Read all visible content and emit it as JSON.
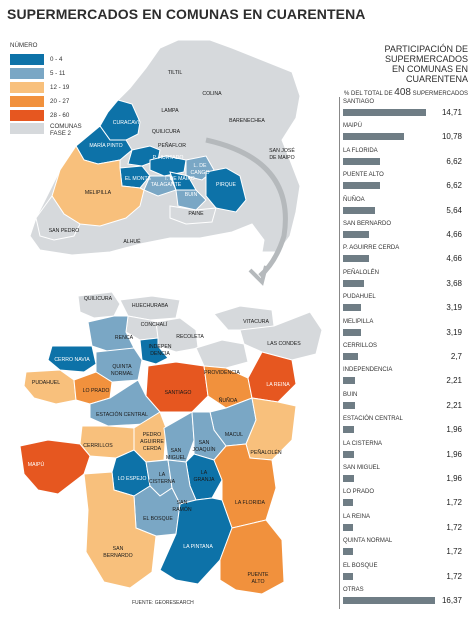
{
  "title": "SUPERMERCADOS EN COMUNAS EN CUARENTENA",
  "colors": {
    "c0_4": "#0d72a8",
    "c5_11": "#7aa7c5",
    "c12_19": "#f8c07c",
    "c20_27": "#f1913d",
    "c28_60": "#e65720",
    "gray": "#d6d9dc"
  },
  "legend": {
    "title": "NÚMERO",
    "items": [
      {
        "label": "0 - 4",
        "color": "#0d72a8"
      },
      {
        "label": "5 - 11",
        "color": "#7aa7c5"
      },
      {
        "label": "12 - 19",
        "color": "#f8c07c"
      },
      {
        "label": "20 - 27",
        "color": "#f1913d"
      },
      {
        "label": "28 - 60",
        "color": "#e65720"
      }
    ],
    "gray_line1": "COMUNAS",
    "gray_line2": "FASE 2"
  },
  "panel": {
    "heading1": "PARTICIPACIÓN DE SUPERMERCADOS",
    "heading2": "EN COMUNAS EN CUARENTENA",
    "sub_pre": "% DEL TOTAL DE",
    "sub_num": "408",
    "sub_post": "SUPERMERCADOS"
  },
  "chart_data": {
    "type": "bar",
    "title": "PARTICIPACIÓN DE SUPERMERCADOS EN COMUNAS EN CUARENTENA",
    "subtitle": "% DEL TOTAL DE 408 SUPERMERCADOS",
    "categories": [
      "SANTIAGO",
      "MAIPÚ",
      "LA FLORIDA",
      "PUENTE ALTO",
      "ÑUÑOA",
      "SAN BERNARDO",
      "P. AGUIRRE CERDA",
      "PEÑALOLÉN",
      "PUDAHUEL",
      "MELIPILLA",
      "CERRILLOS",
      "INDEPENDENCIA",
      "BUIN",
      "ESTACIÓN CENTRAL",
      "LA CISTERNA",
      "SAN MIGUEL",
      "LO PRADO",
      "LA REINA",
      "QUINTA NORMAL",
      "EL BOSQUE",
      "OTRAS"
    ],
    "values": [
      14.71,
      10.78,
      6.62,
      6.62,
      5.64,
      4.66,
      4.66,
      3.68,
      3.19,
      3.19,
      2.7,
      2.21,
      2.21,
      1.96,
      1.96,
      1.96,
      1.72,
      1.72,
      1.72,
      1.72,
      16.37
    ],
    "labels": [
      "14,71",
      "10,78",
      "6,62",
      "6,62",
      "5,64",
      "4,66",
      "4,66",
      "3,68",
      "3,19",
      "3,19",
      "2,7",
      "2,21",
      "2,21",
      "1,96",
      "1,96",
      "1,96",
      "1,72",
      "1,72",
      "1,72",
      "1,72",
      "16,37"
    ]
  },
  "top_map_labels": [
    "TILTIL",
    "COLINA",
    "LAMPA",
    "BARENECHEA",
    "CURACAVÍ",
    "QUILICURA",
    "MARÍA PINTO",
    "PEÑAFLOR",
    "P. HURTADO",
    "L. DE CANGO",
    "SAN JOSÉ",
    "DE MAIPO",
    "EL MONTE",
    "TALAGANTE",
    "I. DE MAIPO",
    "MELIPILLA",
    "BUIN",
    "PIRQUE",
    "PAINE",
    "SAN PEDRO",
    "ALHUÉ"
  ],
  "bottom_map_labels": [
    "QUILICURA",
    "HUECHURABA",
    "CONCHALÍ",
    "VITACURA",
    "RENCA",
    "LAS CONDES",
    "INDEPEN",
    "DENCIA",
    "RECOLETA",
    "CERRO NAVIA",
    "QUINTA",
    "NORMAL",
    "PROVIDENCIA",
    "PUDAHUEL",
    "LO PRADO",
    "SANTIAGO",
    "LA REINA",
    "ÑUÑOA",
    "ESTACIÓN CENTRAL",
    "PEDRO",
    "AGUIRRE",
    "CERDA",
    "SAN",
    "JOAQUÍN",
    "MACUL",
    "CERRILLOS",
    "SAN",
    "MIGUEL",
    "PEÑALOLÉN",
    "MAIPÚ",
    "LO ESPEJO",
    "LA",
    "CISTERNA",
    "LA",
    "GRANJA",
    "SAN",
    "RAMÓN",
    "EL BOSQUE",
    "LA FLORIDA",
    "SAN",
    "BERNARDO",
    "LA PINTANA",
    "PUENTE",
    "ALTO"
  ],
  "source": "FUENTE: GEORESEARCH"
}
